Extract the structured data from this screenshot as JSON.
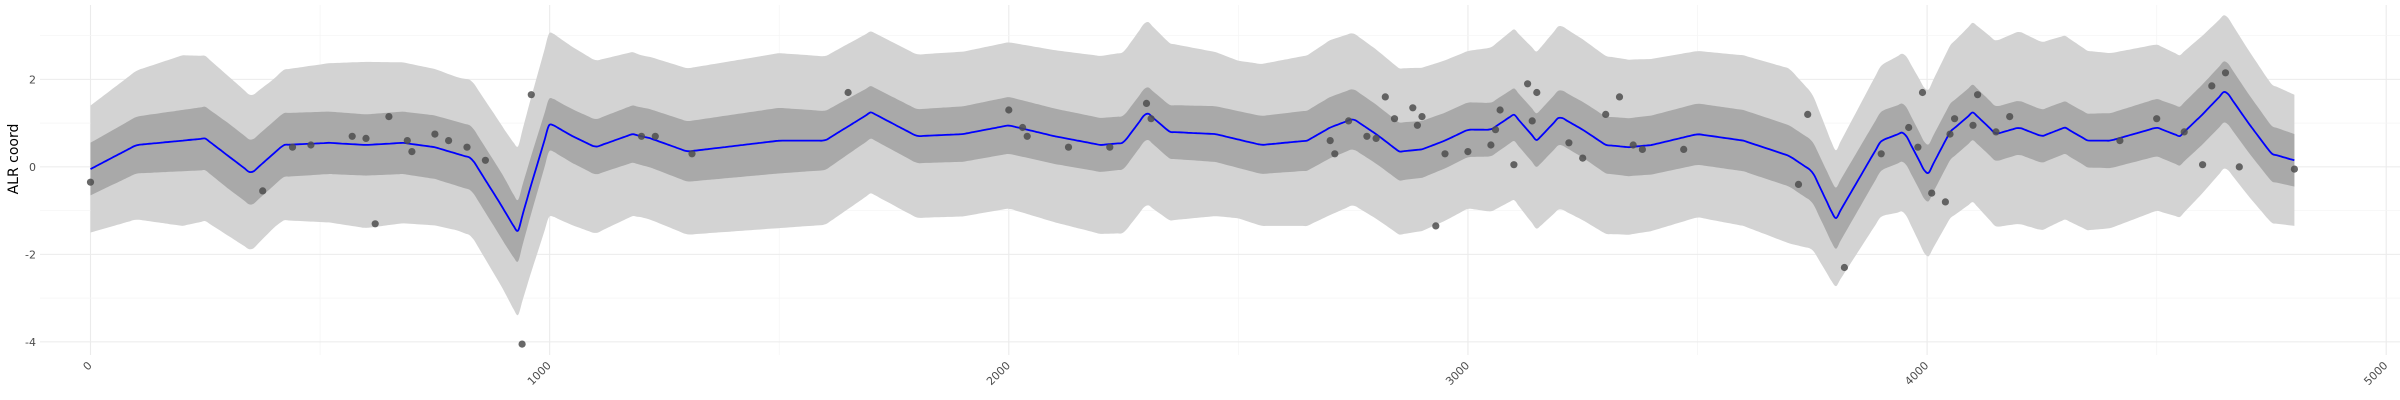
{
  "chart_data": {
    "type": "line",
    "title": "",
    "xlabel": "",
    "ylabel": "ALR coord",
    "xlim": [
      -110,
      5030
    ],
    "ylim": [
      -4.3,
      3.7
    ],
    "grid": true,
    "x_ticks": [
      0,
      1000,
      2000,
      3000,
      4000,
      5000
    ],
    "x_tick_labels": [
      "0",
      "1000",
      "2000",
      "3000",
      "4000",
      "5000"
    ],
    "y_ticks": [
      -4,
      -2,
      0,
      2
    ],
    "y_tick_labels": [
      "-4",
      "-2",
      "0",
      "2"
    ],
    "colors": {
      "mean_line": "#0000ff",
      "band_inner": "#a9a9a9",
      "band_outer": "#d3d3d3",
      "points": "#4d4d4d",
      "grid": "#ebebeb"
    },
    "series": [
      {
        "role": "mean",
        "x": [
          0,
          100,
          250,
          350,
          420,
          520,
          600,
          680,
          750,
          830,
          890,
          930,
          960,
          1000,
          1050,
          1100,
          1180,
          1220,
          1300,
          1380,
          1500,
          1600,
          1700,
          1800,
          1900,
          2000,
          2100,
          2200,
          2250,
          2300,
          2350,
          2450,
          2550,
          2650,
          2700,
          2750,
          2800,
          2850,
          2900,
          2950,
          3000,
          3050,
          3100,
          3150,
          3200,
          3250,
          3300,
          3350,
          3400,
          3500,
          3600,
          3700,
          3750,
          3800,
          3850,
          3900,
          3950,
          4000,
          4050,
          4100,
          4150,
          4200,
          4250,
          4300,
          4350,
          4400,
          4500,
          4550,
          4600,
          4650,
          4700,
          4750,
          4800
        ],
        "y": [
          -0.05,
          0.5,
          0.65,
          -0.15,
          0.5,
          0.55,
          0.5,
          0.55,
          0.45,
          0.2,
          -0.8,
          -1.5,
          -0.4,
          1.0,
          0.7,
          0.45,
          0.75,
          0.65,
          0.35,
          0.45,
          0.6,
          0.6,
          1.25,
          0.7,
          0.75,
          0.95,
          0.7,
          0.5,
          0.55,
          1.25,
          0.8,
          0.75,
          0.5,
          0.6,
          0.9,
          1.1,
          0.75,
          0.35,
          0.4,
          0.6,
          0.85,
          0.85,
          1.2,
          0.6,
          1.15,
          0.85,
          0.5,
          0.45,
          0.5,
          0.75,
          0.6,
          0.25,
          -0.1,
          -1.2,
          -0.3,
          0.6,
          0.8,
          -0.2,
          0.8,
          1.25,
          0.75,
          0.9,
          0.7,
          0.9,
          0.6,
          0.6,
          0.9,
          0.7,
          1.2,
          1.75,
          1.0,
          0.3,
          0.15
        ]
      },
      {
        "role": "inner_band_halfwidth",
        "x": [
          0,
          300,
          600,
          900,
          1000,
          1500,
          1700,
          2000,
          2300,
          2700,
          3100,
          3500,
          3800,
          4000,
          4300,
          4650,
          4800
        ],
        "y": [
          0.6,
          0.75,
          0.7,
          0.75,
          0.6,
          0.75,
          0.6,
          0.65,
          0.6,
          0.7,
          0.6,
          0.7,
          0.7,
          0.65,
          0.6,
          0.7,
          0.6
        ]
      },
      {
        "role": "outer_band_halfwidth",
        "x": [
          0,
          200,
          400,
          600,
          800,
          900,
          1000,
          1200,
          1500,
          1700,
          2000,
          2300,
          2500,
          2700,
          3000,
          3200,
          3500,
          3700,
          3800,
          4000,
          4200,
          4400,
          4650,
          4800
        ],
        "y": [
          1.45,
          1.95,
          1.7,
          1.9,
          1.75,
          1.85,
          2.1,
          1.85,
          2.0,
          1.85,
          1.9,
          2.1,
          1.8,
          2.0,
          1.8,
          2.1,
          1.9,
          2.0,
          1.55,
          1.9,
          2.2,
          2.0,
          1.75,
          1.5
        ]
      },
      {
        "role": "observations",
        "x": [
          0,
          375,
          440,
          480,
          570,
          600,
          620,
          650,
          690,
          700,
          750,
          780,
          820,
          860,
          940,
          960,
          1200,
          1230,
          1310,
          1650,
          2000,
          2030,
          2040,
          2130,
          2220,
          2300,
          2310,
          2700,
          2710,
          2740,
          2780,
          2800,
          2820,
          2840,
          2880,
          2890,
          2900,
          2930,
          2950,
          3000,
          3050,
          3060,
          3070,
          3100,
          3130,
          3140,
          3150,
          3220,
          3250,
          3300,
          3330,
          3360,
          3380,
          3470,
          3720,
          3740,
          3820,
          3900,
          3960,
          3980,
          3990,
          4010,
          4040,
          4050,
          4060,
          4100,
          4110,
          4150,
          4180,
          4420,
          4500,
          4560,
          4600,
          4620,
          4650,
          4680,
          4800
        ],
        "y": [
          -0.35,
          -0.55,
          0.45,
          0.5,
          0.7,
          0.65,
          -1.3,
          1.15,
          0.6,
          0.35,
          0.75,
          0.6,
          0.45,
          0.15,
          -4.05,
          1.65,
          0.7,
          0.7,
          0.3,
          1.7,
          1.3,
          0.9,
          0.7,
          0.45,
          0.45,
          1.45,
          1.1,
          0.6,
          0.3,
          1.05,
          0.7,
          0.65,
          1.6,
          1.1,
          1.35,
          0.95,
          1.15,
          -1.35,
          0.3,
          0.35,
          0.5,
          0.85,
          1.3,
          0.05,
          1.9,
          1.05,
          1.7,
          0.55,
          0.2,
          1.2,
          1.6,
          0.5,
          0.4,
          0.4,
          -0.4,
          1.2,
          -2.3,
          0.3,
          0.9,
          0.45,
          1.7,
          -0.6,
          -0.8,
          0.75,
          1.1,
          0.95,
          1.65,
          0.8,
          1.15,
          0.6,
          1.1,
          0.8,
          0.05,
          1.85,
          2.15,
          0.0,
          -0.05
        ]
      }
    ]
  }
}
